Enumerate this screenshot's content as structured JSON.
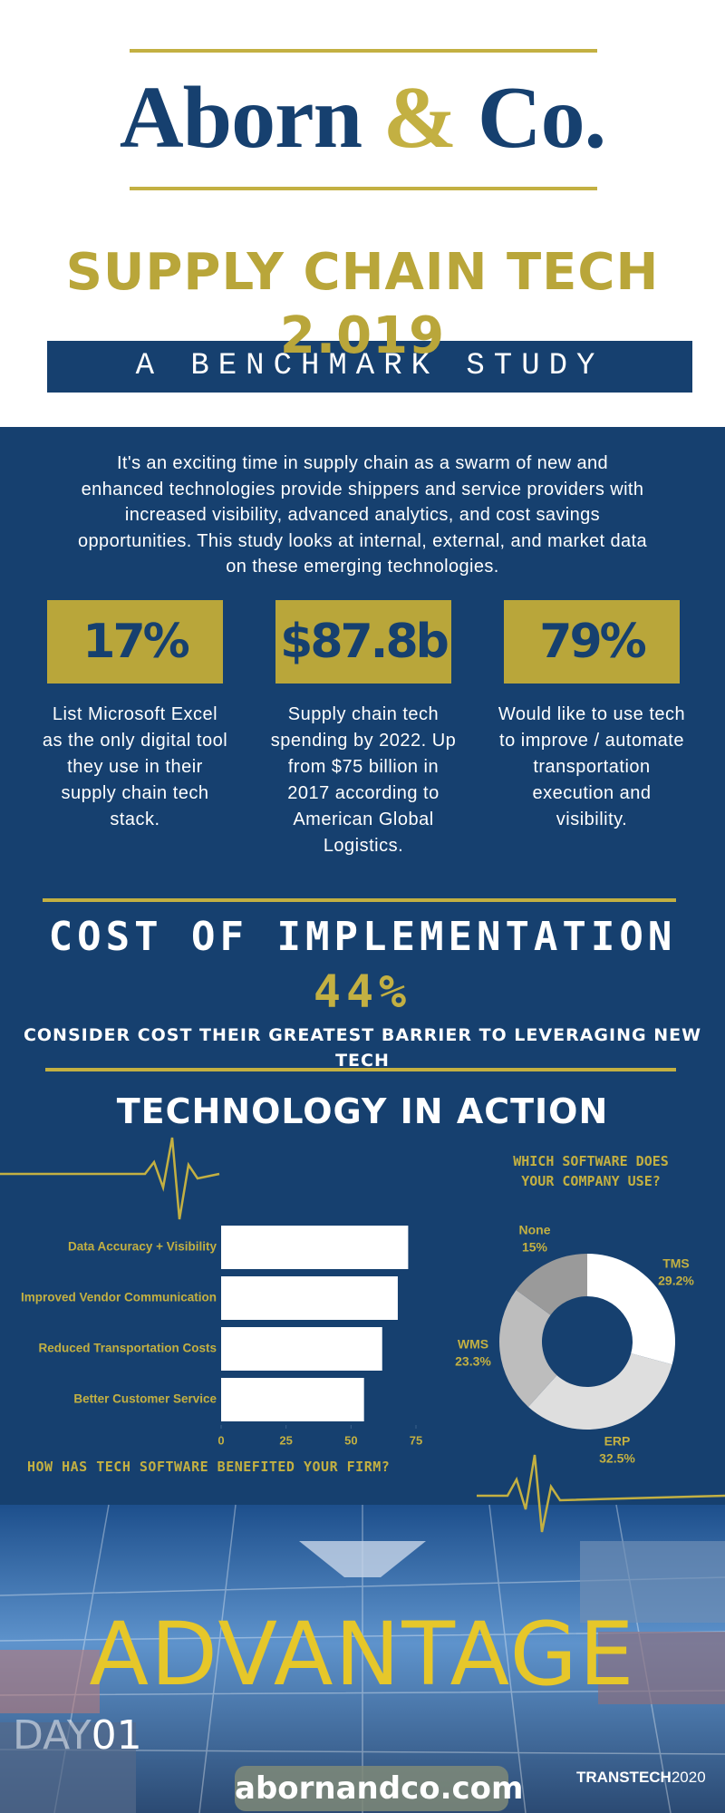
{
  "header": {
    "brand_name": "Aborn",
    "ampersand": "&",
    "brand_suffix": "Co.",
    "title": "SUPPLY CHAIN TECH 2.019",
    "subtitle": "A BENCHMARK STUDY"
  },
  "intro": "It's an exciting time in supply chain as a swarm of new and enhanced technologies provide shippers and service providers with increased visibility, advanced analytics, and cost savings opportunities. This study looks at internal, external, and market data on these emerging technologies.",
  "stats": [
    {
      "value": "17%",
      "description": "List Microsoft Excel as the only digital tool they use in their supply chain tech stack."
    },
    {
      "value": "$87.8b",
      "description": "Supply chain tech spending by 2022. Up from $75 billion in 2017 according to American Global Logistics."
    },
    {
      "value": "79%",
      "description": "Would like to use tech to improve / automate transportation execution and visibility."
    }
  ],
  "cost": {
    "title": "COST OF IMPLEMENTATION",
    "value": "44%",
    "caption": "CONSIDER COST THEIR GREATEST BARRIER TO LEVERAGING NEW TECH"
  },
  "section_title": "TECHNOLOGY IN ACTION",
  "chart_data": [
    {
      "type": "bar",
      "orientation": "horizontal",
      "title": "HOW HAS TECH SOFTWARE BENEFITED YOUR FIRM?",
      "categories": [
        "Data Accuracy + Visibility",
        "Improved Vendor Communication",
        "Reduced Transportation Costs",
        "Better Customer Service"
      ],
      "values": [
        72,
        68,
        62,
        55
      ],
      "color": "#ffffff",
      "xlim": [
        0,
        75
      ],
      "xticks": [
        0,
        25,
        50,
        75
      ]
    },
    {
      "type": "pie",
      "title": "WHICH SOFTWARE DOES\nYOUR COMPANY USE?",
      "categories": [
        "TMS",
        "ERP",
        "WMS",
        "None"
      ],
      "values": [
        29.2,
        32.5,
        23.3,
        15
      ],
      "value_labels": [
        "29.2%",
        "32.5%",
        "23.3%",
        "15%"
      ],
      "colors": [
        "#ffffff",
        "#dedede",
        "#bdbdbd",
        "#9a9a9a"
      ]
    }
  ],
  "footer": {
    "headline": "ADVANTAGE",
    "day_label": "DAY",
    "day_number": "01",
    "website": "abornandco.com",
    "event_name": "TRANSTECH",
    "event_year": "2020"
  }
}
